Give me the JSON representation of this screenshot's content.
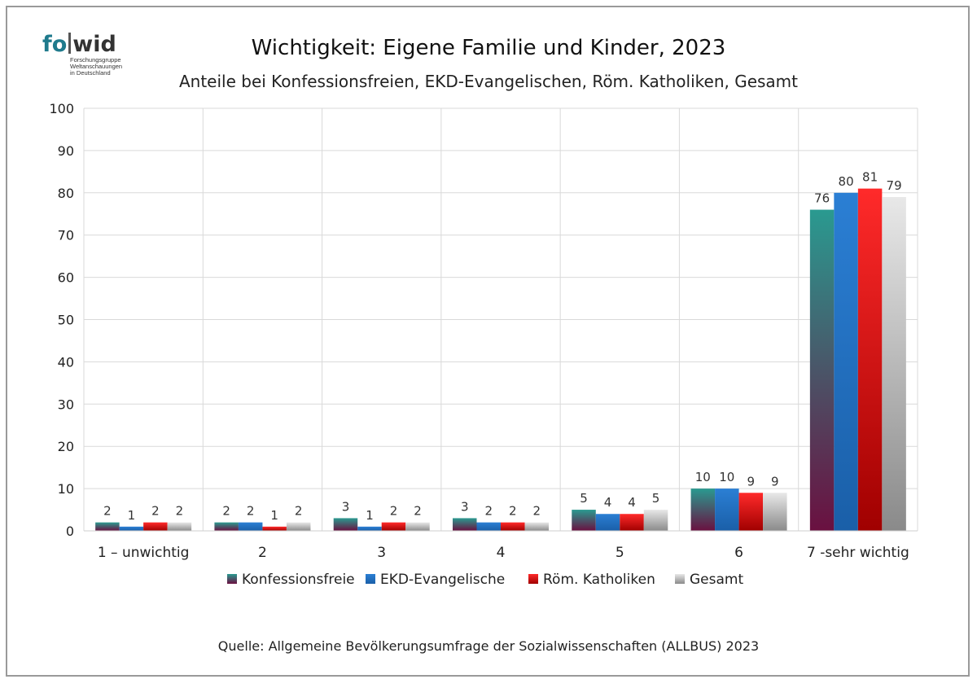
{
  "logo": {
    "wordmark_left": "fo",
    "wordmark_right": "wid",
    "lines": [
      "Forschungsgruppe",
      "Weltanschauungen",
      "in Deutschland"
    ]
  },
  "title": "Wichtigkeit: Eigene Familie und Kinder, 2023",
  "subtitle": "Anteile bei Konfessionsfreien, EKD-Evangelischen, Röm. Katholiken, Gesamt",
  "source": "Quelle: Allgemeine Bevölkerungsumfrage der Sozialwissenschaften (ALLBUS) 2023",
  "chart_data": {
    "type": "bar",
    "categories": [
      "1 – unwichtig",
      "2",
      "3",
      "4",
      "5",
      "6",
      "7 -sehr wichtig"
    ],
    "series": [
      {
        "name": "Konfessionsfreie",
        "values": [
          2,
          2,
          3,
          3,
          5,
          10,
          76
        ],
        "color_top": "#2a9a90",
        "color_bottom": "#6a1040"
      },
      {
        "name": "EKD-Evangelische",
        "values": [
          1,
          2,
          1,
          2,
          4,
          10,
          80
        ],
        "color_top": "#2b7fd4",
        "color_bottom": "#1a5fa8"
      },
      {
        "name": "Röm. Katholiken",
        "values": [
          2,
          1,
          2,
          2,
          4,
          9,
          81
        ],
        "color_top": "#ff2a2a",
        "color_bottom": "#a00000"
      },
      {
        "name": "Gesamt",
        "values": [
          2,
          2,
          2,
          2,
          5,
          9,
          79
        ],
        "color_top": "#e8e8e8",
        "color_bottom": "#8a8a8a"
      }
    ],
    "ylim": [
      0,
      100
    ],
    "yticks": [
      0,
      10,
      20,
      30,
      40,
      50,
      60,
      70,
      80,
      90,
      100
    ],
    "grid": true,
    "legend_position": "bottom"
  }
}
